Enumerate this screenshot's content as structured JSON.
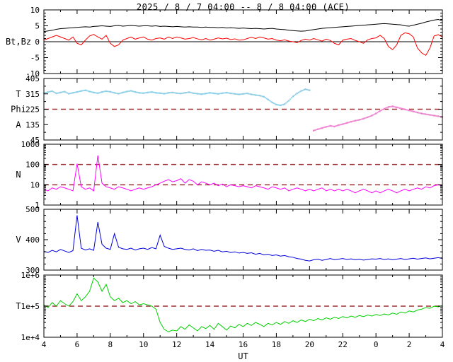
{
  "title": "2025 / 8 / 7  04:00 -- 8 / 8  04:00 (ACE)",
  "xlabel": "UT",
  "chart_data": {
    "type": "line",
    "source": "ACE",
    "ref_line_color": "#993333",
    "x_axis": {
      "min": 4,
      "max": 28,
      "tick_values": [
        4,
        6,
        8,
        10,
        12,
        14,
        16,
        18,
        20,
        22,
        24,
        26,
        28
      ],
      "tick_labels": [
        "4",
        "6",
        "8",
        "10",
        "12",
        "14",
        "16",
        "18",
        "20",
        "22",
        "0",
        "2",
        "4"
      ],
      "tick_minor": [
        5,
        7,
        9,
        11,
        13,
        15,
        17,
        19,
        21,
        23,
        25,
        27
      ]
    },
    "panels": [
      {
        "name": "magnetic-field",
        "ylabel": "Bt,Bz",
        "yscale": "linear",
        "ymin": -10,
        "ymax": 10,
        "yticks": [
          {
            "v": 10,
            "label": "10"
          },
          {
            "v": 5,
            "label": "5"
          },
          {
            "v": 0,
            "label": "0"
          },
          {
            "v": -5,
            "label": "-5"
          },
          {
            "v": -10,
            "label": "-10"
          }
        ],
        "yticks_minor": [
          -9,
          -8,
          -7,
          -6,
          -4,
          -3,
          -2,
          -1,
          1,
          2,
          3,
          4,
          6,
          7,
          8,
          9
        ],
        "left_labels": [
          {
            "text": "Bt,Bz"
          }
        ],
        "solid_lines": [
          0
        ],
        "ref_lines": [],
        "series": [
          {
            "name": "Bt",
            "color": "#000000",
            "style": "line",
            "x0": 4,
            "dx": 0.25,
            "y": [
              3.2,
              3.4,
              3.6,
              3.9,
              4.1,
              4.2,
              4.3,
              4.4,
              4.5,
              4.6,
              4.7,
              4.6,
              4.8,
              4.9,
              5.0,
              4.9,
              4.8,
              5.0,
              5.1,
              4.9,
              5.0,
              5.1,
              5.0,
              4.9,
              5.0,
              5.0,
              4.9,
              5.0,
              4.8,
              4.9,
              4.8,
              4.7,
              4.8,
              4.7,
              4.6,
              4.7,
              4.6,
              4.6,
              4.5,
              4.6,
              4.5,
              4.5,
              4.4,
              4.5,
              4.3,
              4.4,
              4.3,
              4.2,
              4.3,
              4.2,
              4.1,
              4.2,
              4.1,
              4.0,
              4.1,
              4.2,
              4.0,
              3.9,
              3.8,
              3.6,
              3.5,
              3.4,
              3.3,
              3.4,
              3.6,
              3.8,
              4.0,
              4.2,
              4.3,
              4.4,
              4.5,
              4.6,
              4.7,
              4.8,
              4.9,
              5.0,
              5.1,
              5.2,
              5.3,
              5.4,
              5.5,
              5.6,
              5.7,
              5.6,
              5.5,
              5.4,
              5.3,
              5.0,
              4.9,
              5.2,
              5.5,
              5.8,
              6.2,
              6.5,
              6.8,
              7.0,
              6.6
            ]
          },
          {
            "name": "Bz",
            "color": "#ff0000",
            "style": "line",
            "x0": 4,
            "dx": 0.25,
            "y": [
              0.5,
              1.0,
              1.5,
              2.0,
              1.5,
              1.0,
              0.5,
              1.5,
              -0.5,
              -1.0,
              0.5,
              1.8,
              2.3,
              1.5,
              0.8,
              2.0,
              -0.5,
              -1.5,
              -1.0,
              0.5,
              1.0,
              1.5,
              0.8,
              1.2,
              1.5,
              0.8,
              0.5,
              1.0,
              1.2,
              0.8,
              1.5,
              1.0,
              1.5,
              1.2,
              0.8,
              1.0,
              1.3,
              0.9,
              0.6,
              1.0,
              0.5,
              0.8,
              1.2,
              0.9,
              1.1,
              0.7,
              0.9,
              0.5,
              0.6,
              1.0,
              1.4,
              1.0,
              1.5,
              1.2,
              0.8,
              1.0,
              0.5,
              0.3,
              0.6,
              0.2,
              0.0,
              -0.3,
              0.4,
              0.8,
              0.5,
              1.0,
              0.6,
              0.2,
              0.8,
              0.4,
              -0.5,
              -1.0,
              0.5,
              0.8,
              1.0,
              0.4,
              0.0,
              -0.5,
              0.6,
              1.0,
              1.2,
              2.0,
              1.0,
              -1.5,
              -2.5,
              -1.0,
              2.0,
              2.8,
              2.5,
              1.5,
              -2.0,
              -3.5,
              -4.3,
              -2.0,
              1.8,
              2.2,
              1.5
            ]
          }
        ]
      },
      {
        "name": "phi-angle",
        "ylabel": "T Phi A",
        "yscale": "linear",
        "ymin": 45,
        "ymax": 405,
        "yticks": [
          {
            "v": 405,
            "label": "405"
          },
          {
            "v": 315,
            "label": "315"
          },
          {
            "v": 225,
            "label": "225"
          },
          {
            "v": 135,
            "label": "135"
          },
          {
            "v": 45,
            "label": "45"
          }
        ],
        "yticks_minor": [
          90,
          180,
          270,
          360
        ],
        "left_labels": [
          {
            "text": "T",
            "at_value": 315
          },
          {
            "text": "Phi",
            "at_value": 225
          },
          {
            "text": "A",
            "at_value": 135
          }
        ],
        "solid_lines": [],
        "ref_lines": [
          225
        ],
        "series": [
          {
            "name": "phi-segment-1",
            "color": "#8fd0e8",
            "style": "dots",
            "x0": 4,
            "dx": 0.25,
            "y": [
              320,
              326,
              331,
              318,
              323,
              328,
              316,
              321,
              326,
              332,
              336,
              329,
              323,
              319,
              326,
              331,
              327,
              321,
              316,
              323,
              329,
              333,
              326,
              321,
              319,
              323,
              326,
              321,
              319,
              316,
              321,
              323,
              319,
              317,
              321,
              325,
              319,
              316,
              313,
              317,
              321,
              318,
              315,
              319,
              322,
              318,
              315,
              312,
              315,
              318,
              312,
              308,
              305,
              298,
              282,
              265,
              252,
              248,
              255,
              275,
              300,
              318,
              332,
              342,
              336
            ]
          },
          {
            "name": "phi-segment-2",
            "color": "#ee85d0",
            "style": "dots",
            "x0": 20.25,
            "dx": 0.25,
            "y": [
              100,
              108,
              115,
              122,
              128,
              124,
              132,
              138,
              145,
              152,
              158,
              163,
              170,
              178,
              188,
              200,
              215,
              228,
              238,
              242,
              236,
              230,
              224,
              218,
              212,
              206,
              200,
              196,
              192,
              188,
              184,
              180
            ]
          }
        ]
      },
      {
        "name": "density",
        "ylabel": "N",
        "yscale": "log",
        "ymin": 1,
        "ymax": 1000,
        "yticks": [
          {
            "v": 1000,
            "label": "1000"
          },
          {
            "v": 100,
            "label": "100"
          },
          {
            "v": 10,
            "label": "10"
          },
          {
            "v": 1,
            "label": "1"
          }
        ],
        "yticks_minor": [
          2,
          3,
          4,
          5,
          6,
          7,
          8,
          9,
          20,
          30,
          40,
          50,
          60,
          70,
          80,
          90,
          200,
          300,
          400,
          500,
          600,
          700,
          800,
          900
        ],
        "left_labels": [
          {
            "text": "N"
          }
        ],
        "solid_lines": [],
        "ref_lines": [
          10,
          100
        ],
        "series": [
          {
            "name": "N",
            "color": "#ff00ff",
            "style": "line",
            "x0": 4,
            "dx": 0.25,
            "y": [
              6,
              5,
              7,
              6,
              8,
              7,
              6,
              5,
              110,
              8,
              6,
              7,
              5,
              280,
              12,
              8,
              7,
              6,
              8,
              7,
              6,
              5,
              6,
              7,
              6,
              7,
              8,
              10,
              12,
              15,
              18,
              14,
              16,
              20,
              12,
              18,
              15,
              10,
              14,
              12,
              10,
              12,
              9,
              11,
              8,
              10,
              9,
              8,
              9,
              8,
              7,
              9,
              8,
              7,
              6,
              8,
              7,
              6,
              7,
              5,
              6,
              7,
              6,
              5,
              6,
              5,
              6,
              7,
              5,
              6,
              5,
              6,
              5,
              6,
              5,
              4,
              5,
              6,
              5,
              4,
              5,
              4,
              5,
              6,
              5,
              4,
              5,
              6,
              5,
              6,
              7,
              6,
              8,
              7,
              9,
              10,
              9
            ]
          }
        ]
      },
      {
        "name": "speed",
        "ylabel": "V",
        "yscale": "linear",
        "ymin": 300,
        "ymax": 500,
        "yticks": [
          {
            "v": 500,
            "label": "500"
          },
          {
            "v": 400,
            "label": "400"
          },
          {
            "v": 300,
            "label": "300"
          }
        ],
        "yticks_minor": [
          320,
          340,
          360,
          380,
          420,
          440,
          460,
          480
        ],
        "left_labels": [
          {
            "text": "V"
          }
        ],
        "solid_lines": [],
        "ref_lines": [],
        "series": [
          {
            "name": "V",
            "color": "#0000dd",
            "style": "line",
            "x0": 4,
            "dx": 0.25,
            "y": [
              362,
              358,
              365,
              360,
              368,
              363,
              358,
              364,
              480,
              372,
              366,
              370,
              365,
              458,
              385,
              372,
              368,
              420,
              375,
              370,
              368,
              372,
              366,
              370,
              372,
              368,
              374,
              370,
              415,
              378,
              372,
              368,
              370,
              372,
              368,
              366,
              370,
              364,
              368,
              365,
              366,
              362,
              365,
              360,
              362,
              358,
              360,
              356,
              358,
              355,
              357,
              352,
              355,
              350,
              352,
              348,
              350,
              346,
              348,
              344,
              342,
              338,
              336,
              332,
              330,
              334,
              336,
              332,
              335,
              338,
              334,
              336,
              338,
              335,
              337,
              334,
              336,
              333,
              335,
              337,
              336,
              338,
              335,
              337,
              334,
              336,
              338,
              335,
              337,
              339,
              336,
              338,
              340,
              337,
              339,
              341,
              338
            ]
          }
        ]
      },
      {
        "name": "temperature",
        "ylabel": "T",
        "yscale": "log",
        "ymin": 10000,
        "ymax": 1000000,
        "yticks": [
          {
            "v": 1000000,
            "label": "1e+6"
          },
          {
            "v": 100000,
            "label": "1e+5"
          },
          {
            "v": 10000,
            "label": "1e+4"
          }
        ],
        "yticks_minor": [
          20000,
          30000,
          40000,
          50000,
          60000,
          70000,
          80000,
          90000,
          200000,
          300000,
          400000,
          500000,
          600000,
          700000,
          800000,
          900000
        ],
        "left_labels": [
          {
            "text": "T"
          }
        ],
        "solid_lines": [],
        "ref_lines": [
          100000
        ],
        "series": [
          {
            "name": "T",
            "color": "#00d000",
            "style": "line",
            "x0": 4,
            "dx": 0.25,
            "y": [
              110000,
              90000,
              130000,
              100000,
              150000,
              120000,
              100000,
              140000,
              250000,
              150000,
              200000,
              300000,
              800000,
              600000,
              300000,
              500000,
              200000,
              150000,
              180000,
              130000,
              150000,
              120000,
              140000,
              110000,
              120000,
              110000,
              100000,
              80000,
              30000,
              18000,
              15000,
              17000,
              16000,
              22000,
              18000,
              25000,
              20000,
              16000,
              22000,
              19000,
              24000,
              18000,
              28000,
              22000,
              17000,
              23000,
              20000,
              26000,
              22000,
              28000,
              24000,
              30000,
              26000,
              22000,
              28000,
              25000,
              30000,
              26000,
              32000,
              28000,
              34000,
              30000,
              36000,
              32000,
              38000,
              34000,
              40000,
              36000,
              42000,
              38000,
              44000,
              40000,
              46000,
              42000,
              48000,
              44000,
              50000,
              46000,
              52000,
              48000,
              54000,
              50000,
              56000,
              52000,
              60000,
              55000,
              65000,
              60000,
              70000,
              65000,
              75000,
              80000,
              90000,
              85000,
              100000,
              95000,
              105000
            ]
          }
        ]
      }
    ]
  }
}
